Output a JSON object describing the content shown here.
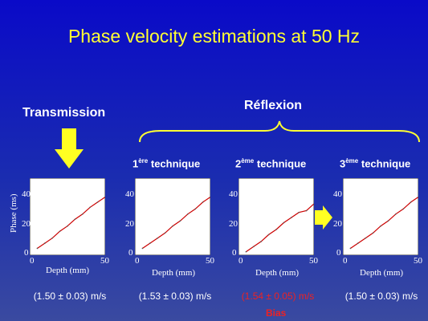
{
  "title": "Phase velocity estimations at 50 Hz",
  "transmission_label": "Transmission",
  "reflexion_label": "Réflexion",
  "techniques": [
    {
      "num": "1",
      "sup": "ère",
      "word": "technique"
    },
    {
      "num": "2",
      "sup": "ème",
      "word": "technique"
    },
    {
      "num": "3",
      "sup": "ème",
      "word": "technique"
    }
  ],
  "plots": [
    {
      "ylabel": "Phase (ms)",
      "xlabel": "Depth (mm)",
      "yticks": [
        "40",
        "20",
        "0"
      ],
      "xticks": [
        "0",
        "50"
      ]
    },
    {
      "xlabel": "Depth (mm)",
      "yticks": [
        "40",
        "20",
        "0"
      ],
      "xticks": [
        "0",
        "50"
      ]
    },
    {
      "xlabel": "Depth (mm)",
      "yticks": [
        "40",
        "20",
        "0"
      ],
      "xticks": [
        "0",
        "50"
      ]
    },
    {
      "xlabel": "Depth (mm)",
      "yticks": [
        "40",
        "20",
        "0"
      ],
      "xticks": [
        "0",
        "50"
      ]
    }
  ],
  "results": [
    {
      "text": "(1.50 ± 0.03) m/s",
      "color": "#ffffff"
    },
    {
      "text": "(1.53 ± 0.03) m/s",
      "color": "#ffffff"
    },
    {
      "text": "(1.54 ± 0.05) m/s",
      "color": "#ee2222"
    },
    {
      "text": "(1.50 ± 0.03) m/s",
      "color": "#ffffff"
    }
  ],
  "bias_label": "Bias",
  "colors": {
    "title": "#ffff33",
    "arrow": "#ffff22",
    "curve": "#cc0000",
    "bias": "#ee2222"
  },
  "chart_data": [
    {
      "type": "line",
      "ylabel": "Phase (ms)",
      "xlabel": "Depth (mm)",
      "xlim": [
        0,
        50
      ],
      "ylim": [
        0,
        45
      ],
      "series": [
        {
          "x": [
            5,
            10,
            15,
            20,
            25,
            30,
            35,
            40,
            45,
            50
          ],
          "y": [
            4,
            7,
            10,
            14,
            17,
            21,
            24,
            28,
            31,
            34
          ]
        }
      ]
    },
    {
      "type": "line",
      "xlabel": "Depth (mm)",
      "xlim": [
        0,
        50
      ],
      "ylim": [
        0,
        45
      ],
      "series": [
        {
          "x": [
            5,
            10,
            15,
            20,
            25,
            30,
            35,
            40,
            45,
            50
          ],
          "y": [
            4,
            7,
            10,
            13,
            17,
            20,
            24,
            27,
            31,
            34
          ]
        }
      ]
    },
    {
      "type": "line",
      "xlabel": "Depth (mm)",
      "xlim": [
        0,
        50
      ],
      "ylim": [
        0,
        45
      ],
      "series": [
        {
          "x": [
            5,
            10,
            15,
            20,
            25,
            30,
            35,
            40,
            45,
            50
          ],
          "y": [
            2,
            5,
            8,
            12,
            15,
            19,
            22,
            25,
            26,
            30
          ]
        }
      ]
    },
    {
      "type": "line",
      "xlabel": "Depth (mm)",
      "xlim": [
        0,
        50
      ],
      "ylim": [
        0,
        45
      ],
      "series": [
        {
          "x": [
            5,
            10,
            15,
            20,
            25,
            30,
            35,
            40,
            45,
            50
          ],
          "y": [
            4,
            7,
            10,
            13,
            17,
            20,
            24,
            27,
            31,
            34
          ]
        }
      ]
    }
  ]
}
